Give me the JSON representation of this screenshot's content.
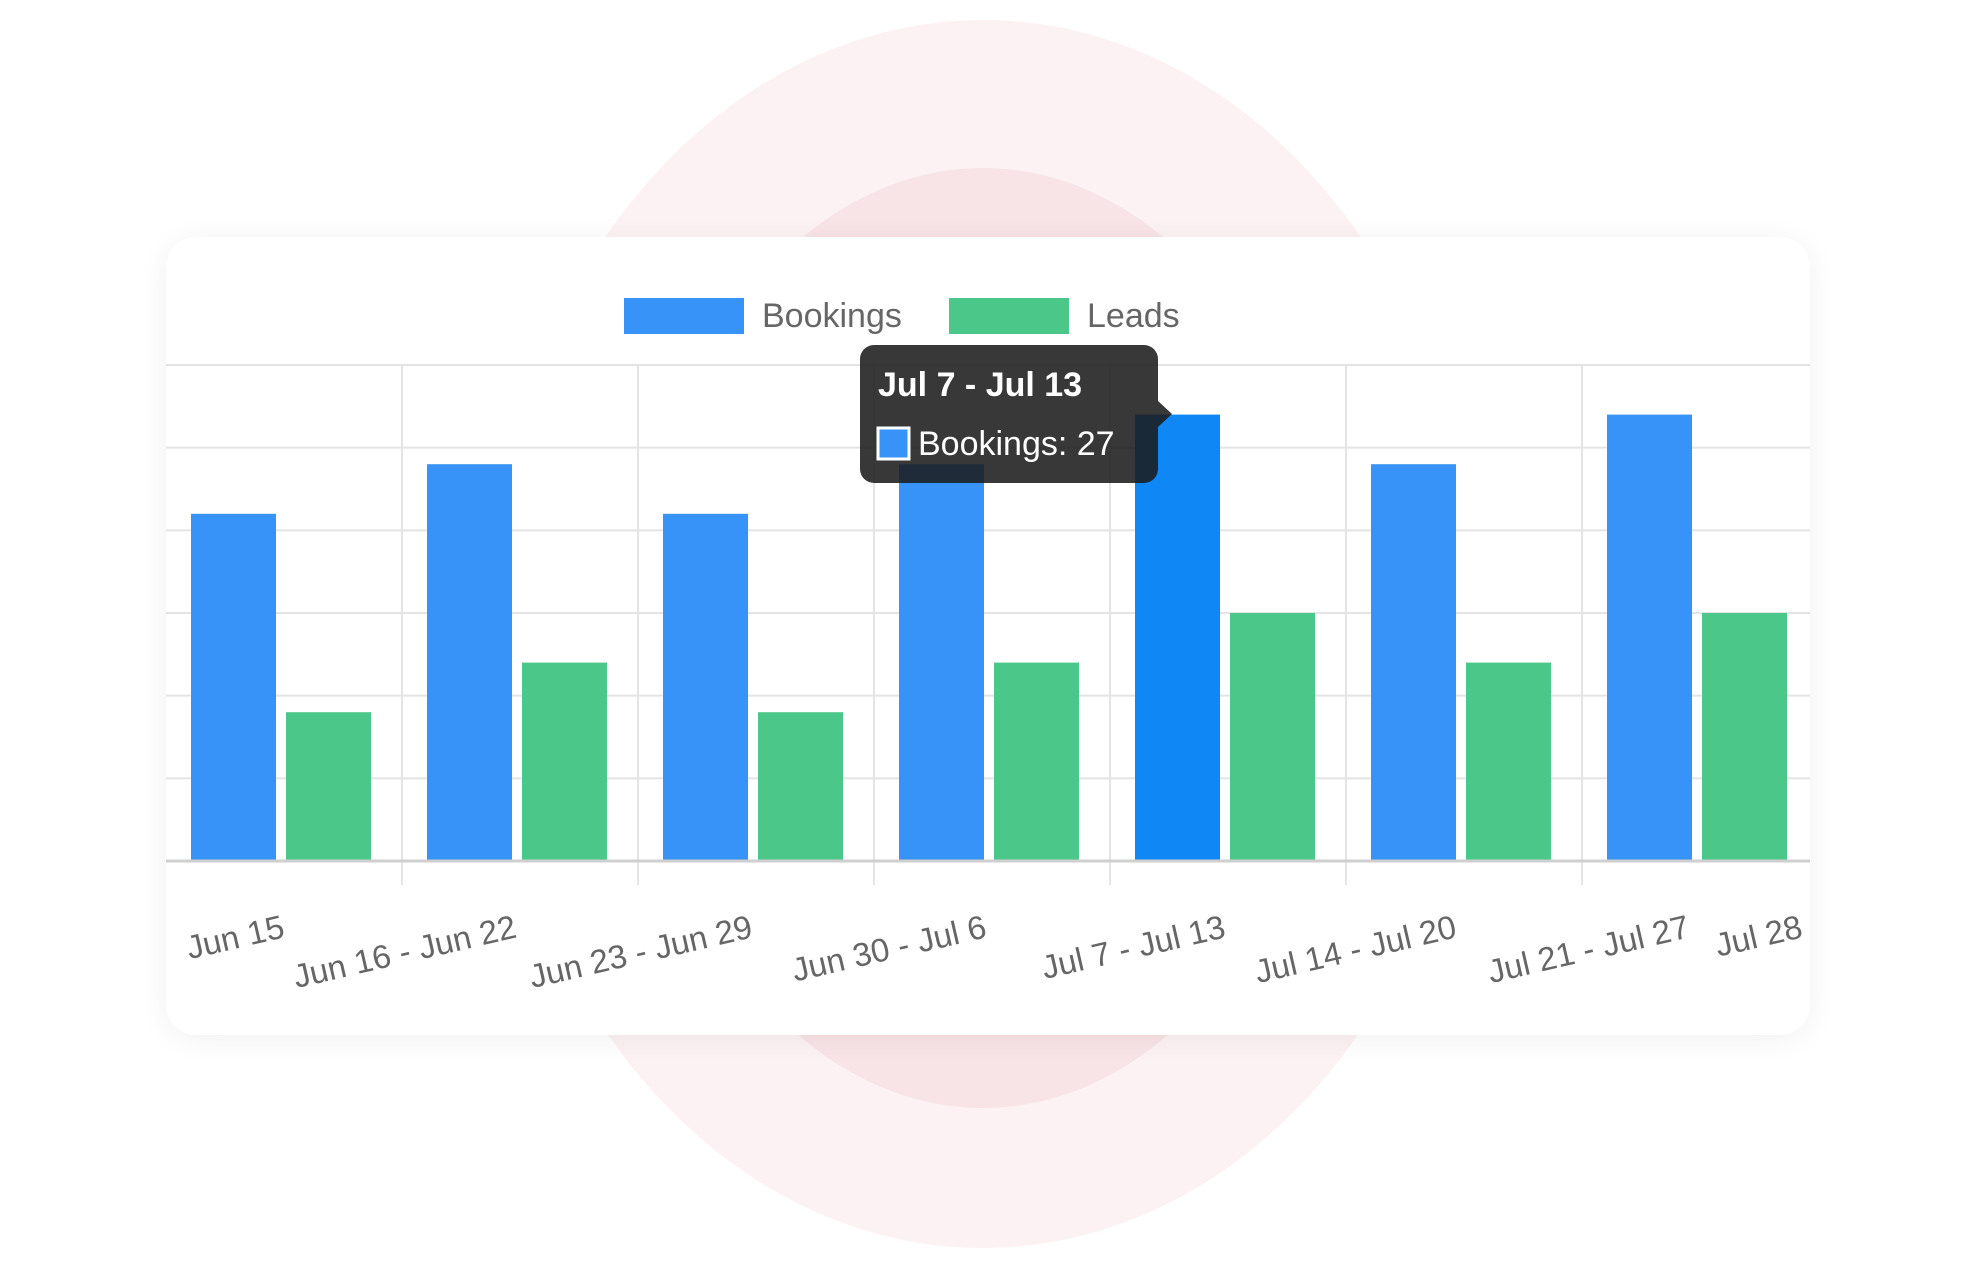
{
  "chart_data": {
    "type": "bar",
    "categories": [
      "Jun 15",
      "Jun 16 - Jun 22",
      "Jun 23 - Jun 29",
      "Jun 30 - Jul 6",
      "Jul 7 - Jul 13",
      "Jul 14 - Jul 20",
      "Jul 21 - Jul 27",
      "Jul 28"
    ],
    "series": [
      {
        "name": "Bookings",
        "color": "#3793f8",
        "values": [
          21,
          24,
          21,
          24,
          27,
          24,
          27,
          0
        ]
      },
      {
        "name": "Leads",
        "color": "#4bc78a",
        "values": [
          9,
          12,
          9,
          12,
          15,
          12,
          15,
          0
        ]
      }
    ],
    "ylim": [
      0,
      30
    ],
    "y_gridlines": 6,
    "grid": true,
    "legend_position": "top-center",
    "highlighted": {
      "category_index": 4,
      "series_index": 0,
      "color": "#0f87f5"
    },
    "tooltip": {
      "title": "Jul 7 - Jul 13",
      "label": "Bookings: 27"
    }
  },
  "colors": {
    "halo_outer": "#fcf2f3",
    "halo_inner": "#f8e4e6",
    "grid": "#e4e4e4",
    "axis": "#cfcfcf",
    "tooltip_bg": "#1c1c1c"
  }
}
